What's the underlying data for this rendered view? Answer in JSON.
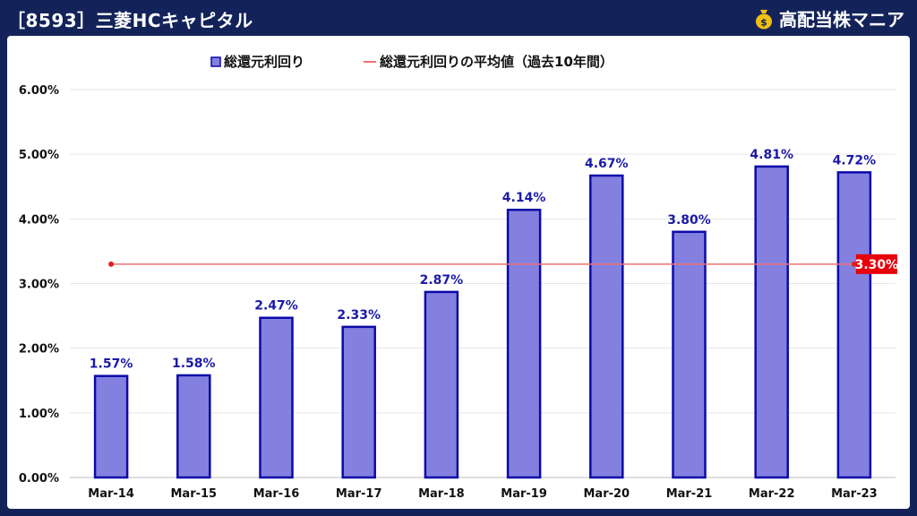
{
  "header": {
    "title": "［8593］三菱HCキャピタル",
    "brand": "高配当株マニア",
    "brand_icon": "money-bag-icon"
  },
  "colors": {
    "bar_fill": "#8480e0",
    "bar_stroke": "#0b0aa8",
    "avg_line": "#f07070",
    "avg_label_bg": "#e8000a",
    "label_text": "#1a1aa8",
    "header_bg": "#13235a"
  },
  "chart_data": {
    "type": "bar",
    "categories": [
      "Mar-14",
      "Mar-15",
      "Mar-16",
      "Mar-17",
      "Mar-18",
      "Mar-19",
      "Mar-20",
      "Mar-21",
      "Mar-22",
      "Mar-23"
    ],
    "series": [
      {
        "name": "総還元利回り",
        "values": [
          1.57,
          1.58,
          2.47,
          2.33,
          2.87,
          4.14,
          4.67,
          3.8,
          4.81,
          4.72
        ]
      }
    ],
    "data_labels": [
      "1.57%",
      "1.58%",
      "2.47%",
      "2.33%",
      "2.87%",
      "4.14%",
      "4.67%",
      "3.80%",
      "4.81%",
      "4.72%"
    ],
    "average_line": {
      "name": "総還元利回りの平均値（過去10年間）",
      "value": 3.3,
      "label": "3.30%"
    },
    "yticks": [
      "0.00%",
      "1.00%",
      "2.00%",
      "3.00%",
      "4.00%",
      "5.00%",
      "6.00%"
    ],
    "ylim": [
      0,
      6
    ],
    "grid": true,
    "legend_position": "top"
  }
}
